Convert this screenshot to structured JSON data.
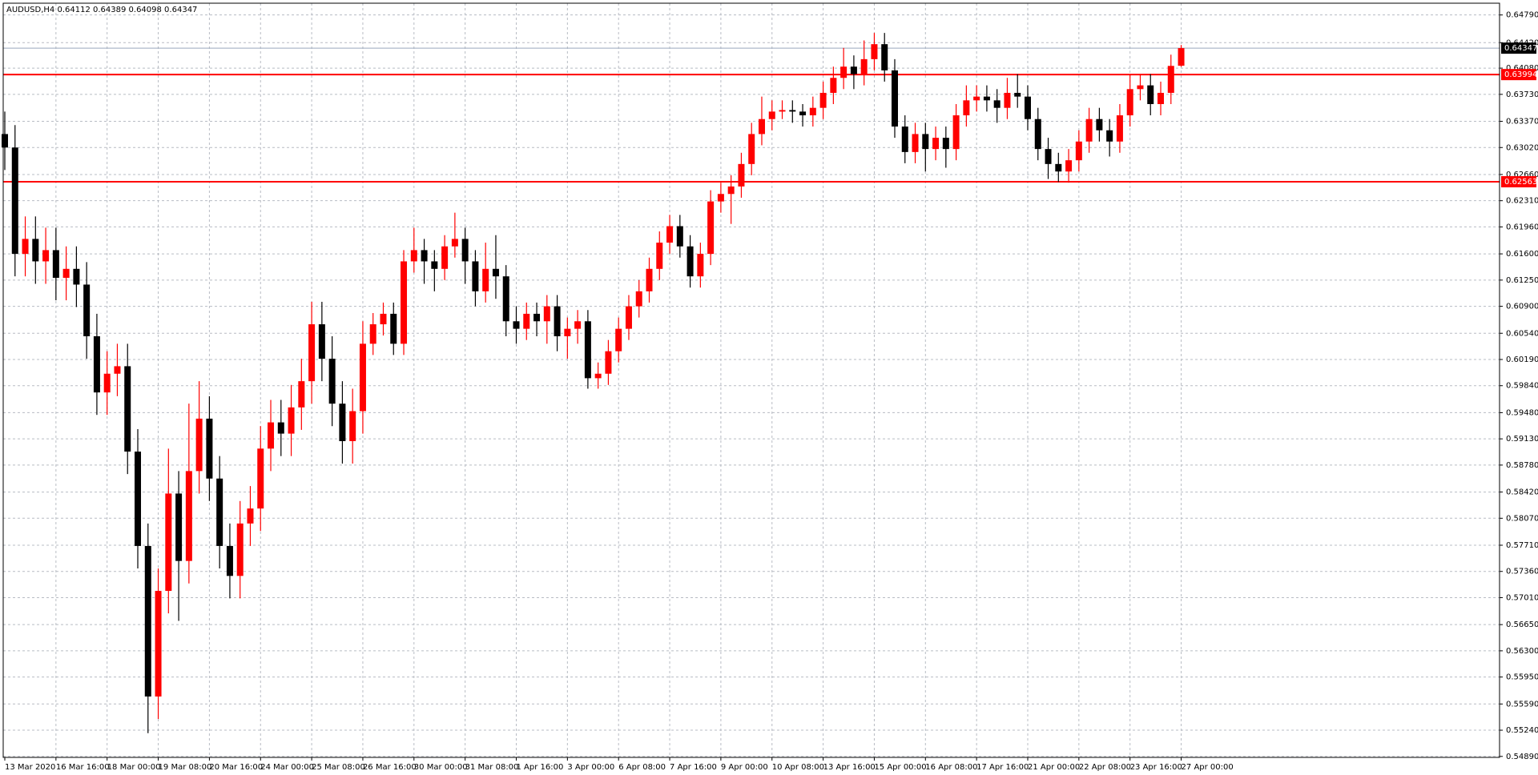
{
  "chart_data": {
    "type": "candlestick",
    "title": "AUDUSD,H4  0.64112 0.64389 0.64098 0.64347",
    "up_color": "#ff0000",
    "down_color": "#000000",
    "grid": true,
    "ylim": [
      0.54877,
      0.64947
    ],
    "yticks": [
      {
        "value": 0.6479,
        "label": "0.64790"
      },
      {
        "value": 0.6442,
        "label": "0.64420"
      },
      {
        "value": 0.6408,
        "label": "0.64080"
      },
      {
        "value": 0.6373,
        "label": "0.63730"
      },
      {
        "value": 0.6337,
        "label": "0.63370"
      },
      {
        "value": 0.6302,
        "label": "0.63020"
      },
      {
        "value": 0.6266,
        "label": "0.62660"
      },
      {
        "value": 0.6231,
        "label": "0.62310"
      },
      {
        "value": 0.6196,
        "label": "0.61960"
      },
      {
        "value": 0.616,
        "label": "0.61600"
      },
      {
        "value": 0.6125,
        "label": "0.61250"
      },
      {
        "value": 0.609,
        "label": "0.60900"
      },
      {
        "value": 0.6054,
        "label": "0.60540"
      },
      {
        "value": 0.6019,
        "label": "0.60190"
      },
      {
        "value": 0.5984,
        "label": "0.59840"
      },
      {
        "value": 0.5948,
        "label": "0.59480"
      },
      {
        "value": 0.5913,
        "label": "0.59130"
      },
      {
        "value": 0.5878,
        "label": "0.58780"
      },
      {
        "value": 0.5842,
        "label": "0.58420"
      },
      {
        "value": 0.5807,
        "label": "0.58070"
      },
      {
        "value": 0.5771,
        "label": "0.57710"
      },
      {
        "value": 0.5736,
        "label": "0.57360"
      },
      {
        "value": 0.5701,
        "label": "0.57010"
      },
      {
        "value": 0.5665,
        "label": "0.56650"
      },
      {
        "value": 0.563,
        "label": "0.56300"
      },
      {
        "value": 0.5595,
        "label": "0.55950"
      },
      {
        "value": 0.5559,
        "label": "0.55590"
      },
      {
        "value": 0.5524,
        "label": "0.55240"
      },
      {
        "value": 0.5489,
        "label": "0.54890"
      }
    ],
    "hlines": [
      {
        "value": 0.64347,
        "label": "0.64347",
        "color": "#9aa8bd",
        "label_bg": "#000000"
      },
      {
        "value": 0.63994,
        "label": "0.63994",
        "color": "#ff0000",
        "label_bg": "#ff0000"
      },
      {
        "value": 0.62563,
        "label": "0.62563",
        "color": "#ff0000",
        "label_bg": "#ff0000"
      }
    ],
    "categories": [
      "13 Mar 2020",
      null,
      null,
      null,
      null,
      "16 Mar 16:00",
      null,
      null,
      null,
      null,
      "18 Mar 00:00",
      null,
      null,
      null,
      null,
      "19 Mar 08:00",
      null,
      null,
      null,
      null,
      "20 Mar 16:00",
      null,
      null,
      null,
      null,
      "24 Mar 00:00",
      null,
      null,
      null,
      null,
      "25 Mar 08:00",
      null,
      null,
      null,
      null,
      "26 Mar 16:00",
      null,
      null,
      null,
      null,
      "30 Mar 00:00",
      null,
      null,
      null,
      null,
      "31 Mar 08:00",
      null,
      null,
      null,
      null,
      "1 Apr 16:00",
      null,
      null,
      null,
      null,
      "3 Apr 00:00",
      null,
      null,
      null,
      null,
      "6 Apr 08:00",
      null,
      null,
      null,
      null,
      "7 Apr 16:00",
      null,
      null,
      null,
      null,
      "9 Apr 00:00",
      null,
      null,
      null,
      null,
      "10 Apr 08:00",
      null,
      null,
      null,
      null,
      "13 Apr 16:00",
      null,
      null,
      null,
      null,
      "15 Apr 00:00",
      null,
      null,
      null,
      null,
      "16 Apr 08:00",
      null,
      null,
      null,
      null,
      "17 Apr 16:00",
      null,
      null,
      null,
      null,
      "21 Apr 00:00",
      null,
      null,
      null,
      null,
      "22 Apr 08:00",
      null,
      null,
      null,
      null,
      "23 Apr 16:00",
      null,
      null,
      null,
      null,
      "27 Apr 00:00"
    ],
    "ohlc": [
      [
        0.632,
        0.635,
        0.6272,
        0.6302
      ],
      [
        0.6302,
        0.6332,
        0.613,
        0.616
      ],
      [
        0.616,
        0.621,
        0.613,
        0.618
      ],
      [
        0.618,
        0.621,
        0.612,
        0.615
      ],
      [
        0.615,
        0.6195,
        0.612,
        0.6165
      ],
      [
        0.6165,
        0.6195,
        0.6098,
        0.6128
      ],
      [
        0.6128,
        0.617,
        0.6098,
        0.614
      ],
      [
        0.614,
        0.617,
        0.6089,
        0.6119
      ],
      [
        0.6119,
        0.6149,
        0.602,
        0.605
      ],
      [
        0.605,
        0.608,
        0.5945,
        0.5975
      ],
      [
        0.5975,
        0.603,
        0.5945,
        0.6
      ],
      [
        0.6,
        0.604,
        0.597,
        0.601
      ],
      [
        0.601,
        0.604,
        0.5866,
        0.5896
      ],
      [
        0.5896,
        0.5926,
        0.574,
        0.577
      ],
      [
        0.577,
        0.58,
        0.552,
        0.5569
      ],
      [
        0.5569,
        0.574,
        0.5539,
        0.571
      ],
      [
        0.571,
        0.59,
        0.568,
        0.584
      ],
      [
        0.584,
        0.587,
        0.567,
        0.575
      ],
      [
        0.575,
        0.596,
        0.572,
        0.587
      ],
      [
        0.587,
        0.599,
        0.584,
        0.594
      ],
      [
        0.594,
        0.597,
        0.583,
        0.586
      ],
      [
        0.586,
        0.589,
        0.574,
        0.577
      ],
      [
        0.577,
        0.58,
        0.57,
        0.573
      ],
      [
        0.573,
        0.583,
        0.57,
        0.58
      ],
      [
        0.58,
        0.585,
        0.577,
        0.582
      ],
      [
        0.582,
        0.593,
        0.579,
        0.59
      ],
      [
        0.59,
        0.5965,
        0.587,
        0.5935
      ],
      [
        0.5935,
        0.5965,
        0.589,
        0.592
      ],
      [
        0.592,
        0.5985,
        0.589,
        0.5955
      ],
      [
        0.5955,
        0.602,
        0.5925,
        0.599
      ],
      [
        0.599,
        0.6096,
        0.596,
        0.6066
      ],
      [
        0.6066,
        0.6096,
        0.599,
        0.602
      ],
      [
        0.602,
        0.605,
        0.593,
        0.596
      ],
      [
        0.596,
        0.599,
        0.588,
        0.591
      ],
      [
        0.591,
        0.598,
        0.588,
        0.595
      ],
      [
        0.595,
        0.607,
        0.592,
        0.604
      ],
      [
        0.604,
        0.6081,
        0.6025,
        0.6066
      ],
      [
        0.6066,
        0.6095,
        0.6051,
        0.608
      ],
      [
        0.608,
        0.6095,
        0.6025,
        0.604
      ],
      [
        0.604,
        0.6165,
        0.6025,
        0.615
      ],
      [
        0.615,
        0.6195,
        0.6135,
        0.6165
      ],
      [
        0.6165,
        0.618,
        0.612,
        0.615
      ],
      [
        0.615,
        0.6165,
        0.611,
        0.614
      ],
      [
        0.614,
        0.6185,
        0.6125,
        0.617
      ],
      [
        0.617,
        0.6215,
        0.6155,
        0.618
      ],
      [
        0.618,
        0.6195,
        0.612,
        0.615
      ],
      [
        0.615,
        0.6165,
        0.609,
        0.611
      ],
      [
        0.611,
        0.6175,
        0.6095,
        0.614
      ],
      [
        0.614,
        0.6185,
        0.61,
        0.613
      ],
      [
        0.613,
        0.6145,
        0.605,
        0.607
      ],
      [
        0.607,
        0.609,
        0.604,
        0.606
      ],
      [
        0.606,
        0.6095,
        0.6045,
        0.608
      ],
      [
        0.608,
        0.6095,
        0.605,
        0.607
      ],
      [
        0.607,
        0.6105,
        0.604,
        0.609
      ],
      [
        0.609,
        0.6105,
        0.603,
        0.605
      ],
      [
        0.605,
        0.6075,
        0.602,
        0.606
      ],
      [
        0.606,
        0.6085,
        0.604,
        0.607
      ],
      [
        0.607,
        0.6085,
        0.598,
        0.5994
      ],
      [
        0.5994,
        0.6015,
        0.598,
        0.6
      ],
      [
        0.6,
        0.6045,
        0.5985,
        0.603
      ],
      [
        0.603,
        0.6075,
        0.6015,
        0.606
      ],
      [
        0.606,
        0.6105,
        0.6045,
        0.609
      ],
      [
        0.609,
        0.6125,
        0.6075,
        0.611
      ],
      [
        0.611,
        0.6155,
        0.6095,
        0.614
      ],
      [
        0.614,
        0.619,
        0.6125,
        0.6175
      ],
      [
        0.6175,
        0.6212,
        0.616,
        0.6197
      ],
      [
        0.6197,
        0.6212,
        0.6155,
        0.617
      ],
      [
        0.617,
        0.6185,
        0.6115,
        0.613
      ],
      [
        0.613,
        0.6175,
        0.6115,
        0.616
      ],
      [
        0.616,
        0.6245,
        0.6145,
        0.623
      ],
      [
        0.623,
        0.6255,
        0.6215,
        0.624
      ],
      [
        0.624,
        0.6265,
        0.62,
        0.625
      ],
      [
        0.625,
        0.6295,
        0.6235,
        0.628
      ],
      [
        0.628,
        0.6335,
        0.6265,
        0.632
      ],
      [
        0.632,
        0.637,
        0.6305,
        0.634
      ],
      [
        0.634,
        0.6365,
        0.6325,
        0.635
      ],
      [
        0.635,
        0.6365,
        0.634,
        0.6352
      ],
      [
        0.6352,
        0.6365,
        0.6335,
        0.635
      ],
      [
        0.635,
        0.636,
        0.633,
        0.6345
      ],
      [
        0.6345,
        0.637,
        0.633,
        0.6355
      ],
      [
        0.6355,
        0.639,
        0.634,
        0.6375
      ],
      [
        0.6375,
        0.641,
        0.636,
        0.6395
      ],
      [
        0.6395,
        0.6435,
        0.638,
        0.641
      ],
      [
        0.641,
        0.6425,
        0.638,
        0.64
      ],
      [
        0.64,
        0.6445,
        0.6385,
        0.642
      ],
      [
        0.642,
        0.6455,
        0.6405,
        0.644
      ],
      [
        0.644,
        0.6455,
        0.639,
        0.6405
      ],
      [
        0.6405,
        0.642,
        0.6315,
        0.633
      ],
      [
        0.633,
        0.6345,
        0.6281,
        0.6296
      ],
      [
        0.6296,
        0.6335,
        0.6281,
        0.632
      ],
      [
        0.632,
        0.6335,
        0.627,
        0.63
      ],
      [
        0.63,
        0.633,
        0.6285,
        0.6315
      ],
      [
        0.6315,
        0.633,
        0.6275,
        0.63
      ],
      [
        0.63,
        0.636,
        0.6285,
        0.6345
      ],
      [
        0.6345,
        0.6385,
        0.633,
        0.6365
      ],
      [
        0.6365,
        0.6385,
        0.635,
        0.637
      ],
      [
        0.637,
        0.6385,
        0.635,
        0.6365
      ],
      [
        0.6365,
        0.638,
        0.6335,
        0.6355
      ],
      [
        0.6355,
        0.6395,
        0.634,
        0.6375
      ],
      [
        0.6375,
        0.64,
        0.6355,
        0.637
      ],
      [
        0.637,
        0.6385,
        0.6325,
        0.634
      ],
      [
        0.634,
        0.6355,
        0.6285,
        0.63
      ],
      [
        0.63,
        0.6315,
        0.626,
        0.628
      ],
      [
        0.628,
        0.6295,
        0.6256,
        0.627
      ],
      [
        0.627,
        0.63,
        0.6255,
        0.6285
      ],
      [
        0.6285,
        0.6325,
        0.627,
        0.631
      ],
      [
        0.631,
        0.6355,
        0.6295,
        0.634
      ],
      [
        0.634,
        0.6355,
        0.631,
        0.6325
      ],
      [
        0.6325,
        0.634,
        0.629,
        0.631
      ],
      [
        0.631,
        0.636,
        0.6295,
        0.6345
      ],
      [
        0.6345,
        0.64,
        0.633,
        0.638
      ],
      [
        0.638,
        0.64,
        0.6365,
        0.6385
      ],
      [
        0.6385,
        0.64,
        0.6345,
        0.636
      ],
      [
        0.636,
        0.639,
        0.6345,
        0.6375
      ],
      [
        0.6375,
        0.6426,
        0.636,
        0.6411
      ],
      [
        0.64112,
        0.64389,
        0.64098,
        0.64347
      ]
    ]
  }
}
